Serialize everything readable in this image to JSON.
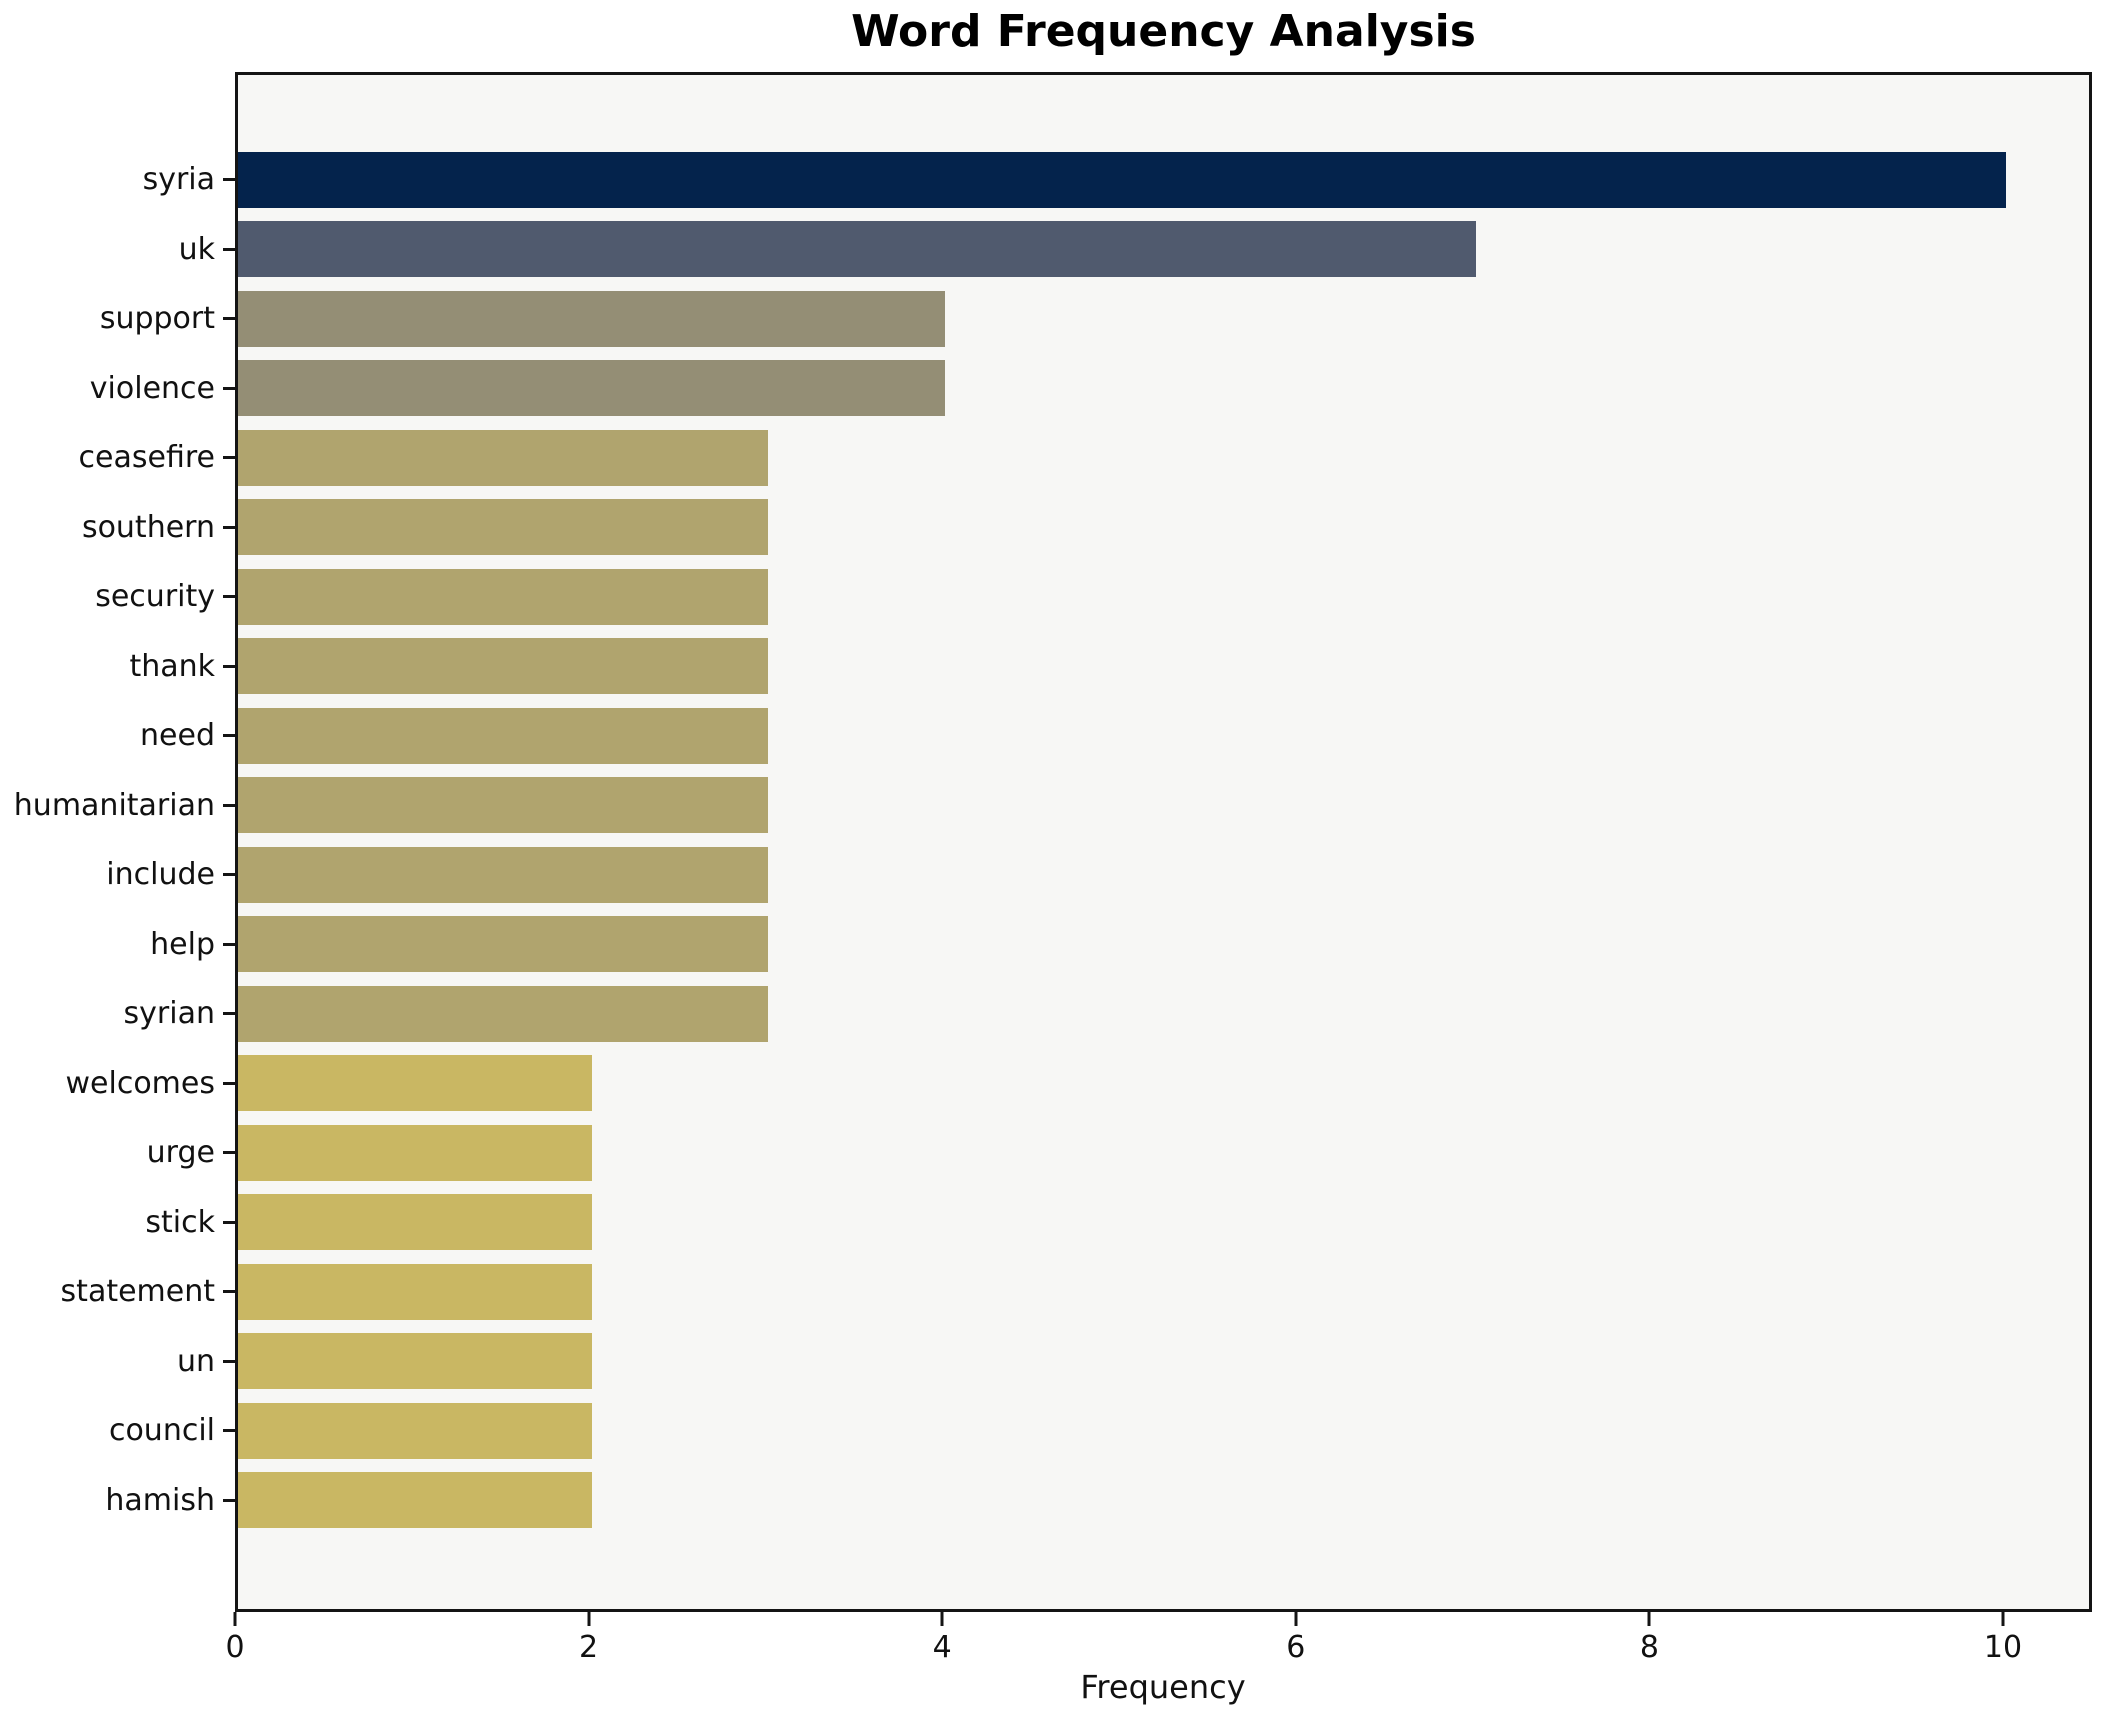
{
  "chart_data": {
    "type": "bar",
    "orientation": "horizontal",
    "title": "Word Frequency Analysis",
    "xlabel": "Frequency",
    "ylabel": "",
    "categories": [
      "syria",
      "uk",
      "support",
      "violence",
      "ceasefire",
      "southern",
      "security",
      "thank",
      "need",
      "humanitarian",
      "include",
      "help",
      "syrian",
      "welcomes",
      "urge",
      "stick",
      "statement",
      "un",
      "council",
      "hamish"
    ],
    "values": [
      10,
      7,
      4,
      4,
      3,
      3,
      3,
      3,
      3,
      3,
      3,
      3,
      3,
      2,
      2,
      2,
      2,
      2,
      2,
      2
    ],
    "bar_colors": [
      "#04234c",
      "#505a6e",
      "#948e75",
      "#948e75",
      "#b0a46e",
      "#b0a46e",
      "#b0a46e",
      "#b0a46e",
      "#b0a46e",
      "#b0a46e",
      "#b0a46e",
      "#b0a46e",
      "#b0a46e",
      "#c9b763",
      "#c9b763",
      "#c9b763",
      "#c9b763",
      "#c9b763",
      "#c9b763",
      "#c9b763"
    ],
    "x_ticks": [
      0,
      2,
      4,
      6,
      8,
      10
    ],
    "xlim": [
      0,
      10.5
    ],
    "grid": false,
    "legend": false,
    "plot_background": "#f7f7f5",
    "figure_background": "#ffffff",
    "spine_color": "#141414"
  }
}
